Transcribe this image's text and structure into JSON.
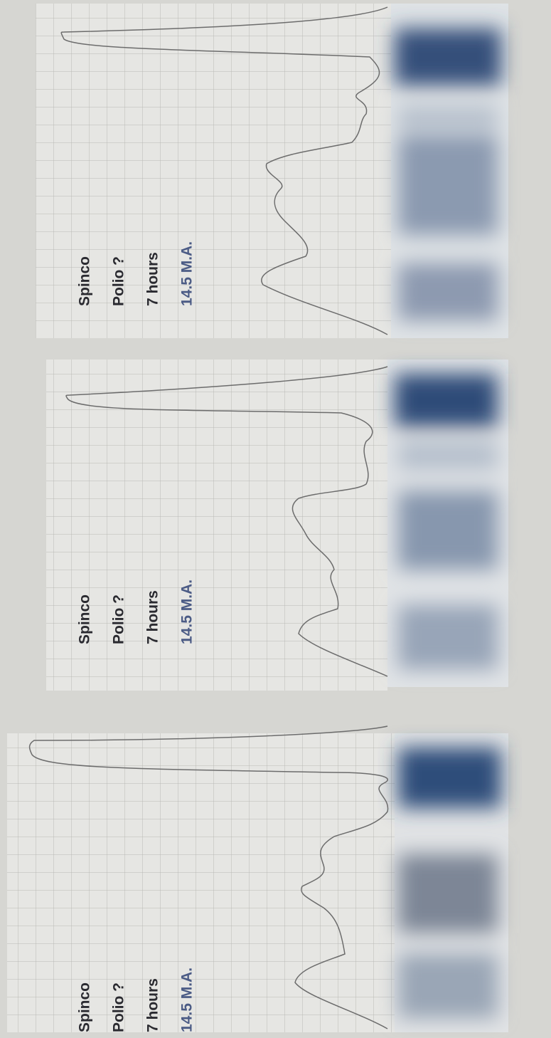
{
  "panels": [
    {
      "lines": [
        "Spinco",
        "Polio ?",
        "7 hours",
        "14.5 M.A."
      ]
    },
    {
      "lines": [
        "Spinco",
        "Polio ?",
        "7 hours",
        "14.5 M.A."
      ]
    },
    {
      "lines": [
        "Spinco",
        "Polio ?",
        "7 hours",
        "14.5 M.A."
      ]
    }
  ]
}
